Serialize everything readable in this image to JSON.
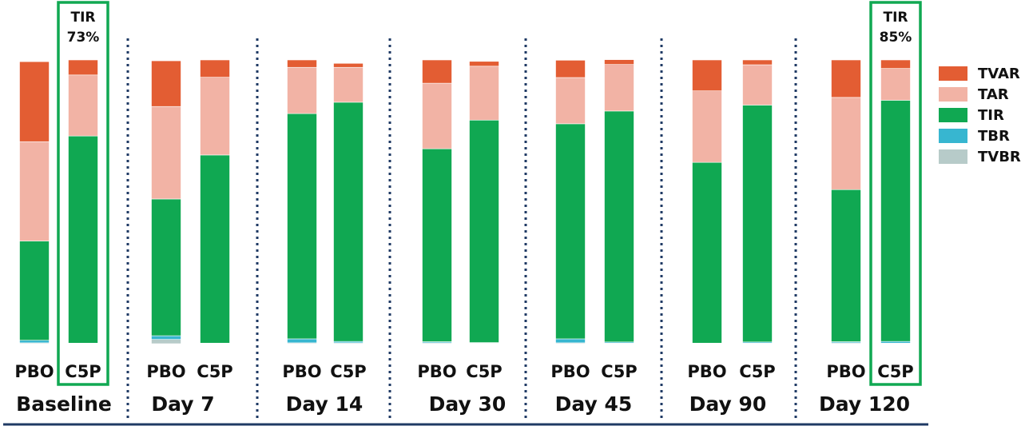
{
  "chart_data": {
    "type": "bar",
    "stacked": true,
    "orientation": "vertical",
    "ylim": [
      0,
      100
    ],
    "groups": [
      {
        "label": "Baseline",
        "bars": [
          {
            "label": "PBO",
            "values": {
              "TVBR": 0.3,
              "TBR": 0.9,
              "TIR": 35.0,
              "TAR": 35.0,
              "TVAR": 28.2
            }
          },
          {
            "label": "C5P",
            "values": {
              "TVBR": 0.1,
              "TBR": 0.1,
              "TIR": 73.0,
              "TAR": 21.5,
              "TVAR": 5.3
            }
          }
        ]
      },
      {
        "label": "Day 7",
        "bars": [
          {
            "label": "PBO",
            "values": {
              "TVBR": 1.5,
              "TBR": 1.3,
              "TIR": 48.2,
              "TAR": 32.6,
              "TVAR": 16.1
            }
          },
          {
            "label": "C5P",
            "values": {
              "TVBR": 0.1,
              "TBR": 0.1,
              "TIR": 66.3,
              "TAR": 27.4,
              "TVAR": 6.1
            }
          }
        ]
      },
      {
        "label": "Day 14",
        "bars": [
          {
            "label": "PBO",
            "values": {
              "TVBR": 0.3,
              "TBR": 1.4,
              "TIR": 79.4,
              "TAR": 16.3,
              "TVAR": 2.6
            }
          },
          {
            "label": "C5P",
            "values": {
              "TVBR": 0.3,
              "TBR": 0.5,
              "TIR": 84.3,
              "TAR": 12.3,
              "TVAR": 1.4
            }
          }
        ]
      },
      {
        "label": "Day 30",
        "bars": [
          {
            "label": "PBO",
            "values": {
              "TVBR": 0.3,
              "TBR": 0.4,
              "TIR": 68.0,
              "TAR": 23.1,
              "TVAR": 8.2
            }
          },
          {
            "label": "C5P",
            "values": {
              "TVBR": 0.2,
              "TBR": 0.2,
              "TIR": 78.4,
              "TAR": 19.0,
              "TVAR": 1.7
            }
          }
        ]
      },
      {
        "label": "Day 45",
        "bars": [
          {
            "label": "PBO",
            "values": {
              "TVBR": 0.3,
              "TBR": 1.4,
              "TIR": 75.8,
              "TAR": 16.3,
              "TVAR": 6.1
            }
          },
          {
            "label": "C5P",
            "values": {
              "TVBR": 0.2,
              "TBR": 0.4,
              "TIR": 81.4,
              "TAR": 16.4,
              "TVAR": 1.7
            }
          }
        ]
      },
      {
        "label": "Day 90",
        "bars": [
          {
            "label": "PBO",
            "values": {
              "TVBR": 0.1,
              "TBR": 0.1,
              "TIR": 63.7,
              "TAR": 25.2,
              "TVAR": 10.9
            }
          },
          {
            "label": "C5P",
            "values": {
              "TVBR": 0.2,
              "TBR": 0.4,
              "TIR": 83.5,
              "TAR": 14.2,
              "TVAR": 1.7
            }
          }
        ]
      },
      {
        "label": "Day 120",
        "bars": [
          {
            "label": "PBO",
            "values": {
              "TVBR": 0.3,
              "TBR": 0.4,
              "TIR": 53.6,
              "TAR": 32.5,
              "TVAR": 13.2
            }
          },
          {
            "label": "C5P",
            "values": {
              "TVBR": 0.2,
              "TBR": 0.6,
              "TIR": 85.0,
              "TAR": 11.2,
              "TVAR": 3.0
            }
          }
        ]
      }
    ],
    "stack_order": [
      "TVBR",
      "TBR",
      "TIR",
      "TAR",
      "TVAR"
    ],
    "colors": {
      "TVAR": "#e35d33",
      "TAR": "#f2b3a5",
      "TIR": "#10a852",
      "TBR": "#37b6d0",
      "TVBR": "#b7cbc9"
    },
    "legend": {
      "position": "right",
      "items": [
        {
          "name": "TVAR",
          "label": "TVAR"
        },
        {
          "name": "TAR",
          "label": "TAR"
        },
        {
          "name": "TIR",
          "label": "TIR"
        },
        {
          "name": "TBR",
          "label": "TBR"
        },
        {
          "name": "TVBR",
          "label": "TVBR"
        }
      ]
    },
    "callouts": [
      {
        "group": 0,
        "bar": 1,
        "line1": "TIR",
        "line2": "73%"
      },
      {
        "group": 6,
        "bar": 1,
        "line1": "TIR",
        "line2": "85%"
      }
    ],
    "highlight_color": "#10a852",
    "separator_color": "#1f3a64",
    "axis_line_color": "#1f3a64",
    "grid": false
  }
}
